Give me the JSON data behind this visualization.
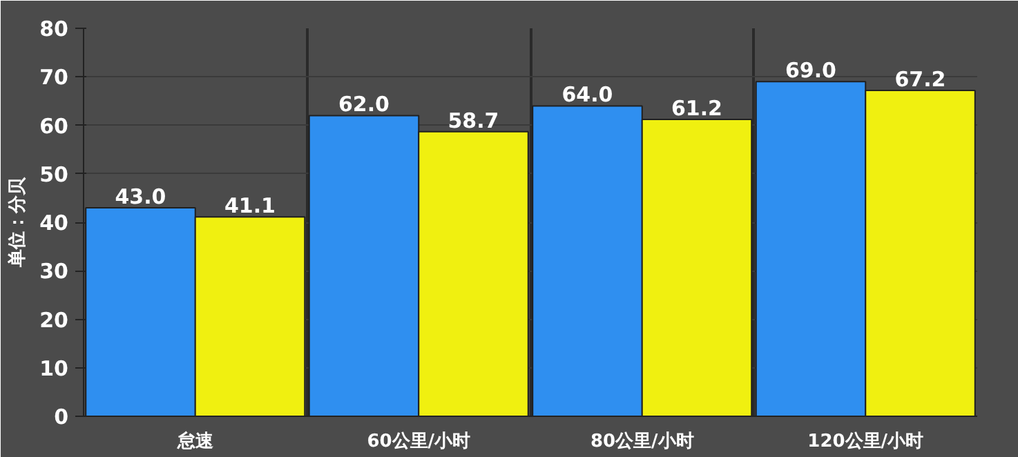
{
  "chart_data": {
    "type": "bar",
    "ylabel": "单位：分贝",
    "categories": [
      "怠速",
      "60公里/小时",
      "80公里/小时",
      "120公里/小时"
    ],
    "series": [
      {
        "color": "#2f8ff0",
        "values": [
          43.0,
          62.0,
          64.0,
          69.0
        ],
        "value_labels": [
          "43.0",
          "62.0",
          "64.0",
          "69.0"
        ]
      },
      {
        "color": "#f0f010",
        "values": [
          41.1,
          58.7,
          61.2,
          67.2
        ],
        "value_labels": [
          "41.1",
          "58.7",
          "61.2",
          "67.2"
        ]
      }
    ],
    "ylim": [
      0,
      80
    ],
    "yticks": [
      0,
      10,
      20,
      30,
      40,
      50,
      60,
      70,
      80
    ],
    "grid": true
  }
}
